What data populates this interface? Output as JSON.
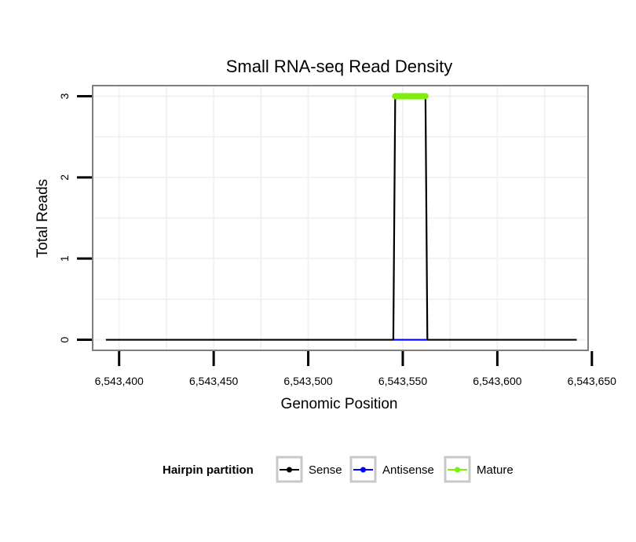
{
  "chart_data": {
    "type": "line",
    "title": "Small RNA-seq Read Density",
    "xlabel": "Genomic Position",
    "ylabel": "Total Reads",
    "xlim": [
      6543386,
      6543648
    ],
    "ylim": [
      -0.13,
      3.13
    ],
    "x_ticks": [
      6543400,
      6543450,
      6543500,
      6543550,
      6543600,
      6543650
    ],
    "x_tick_labels": [
      "6,543,400",
      "6,543,450",
      "6,543,500",
      "6,543,550",
      "6,543,600",
      "6,543,650"
    ],
    "y_ticks": [
      0,
      1,
      2,
      3
    ],
    "y_tick_labels": [
      "0",
      "1",
      "2",
      "3"
    ],
    "grid": true,
    "legend": {
      "title": "Hairpin partition",
      "position": "bottom",
      "entries": [
        "Sense",
        "Antisense",
        "Mature"
      ]
    },
    "series": [
      {
        "name": "Sense",
        "color": "#000000",
        "x": [
          6543393,
          6543545,
          6543546,
          6543562,
          6543563,
          6543642
        ],
        "y": [
          0,
          0,
          3,
          3,
          0,
          0
        ]
      },
      {
        "name": "Antisense",
        "color": "#0000ff",
        "x": [
          6543545,
          6543563
        ],
        "y": [
          0,
          0
        ]
      },
      {
        "name": "Mature",
        "color": "#7cf00a",
        "x": [
          6543546,
          6543562
        ],
        "y": [
          3,
          3
        ]
      }
    ]
  }
}
